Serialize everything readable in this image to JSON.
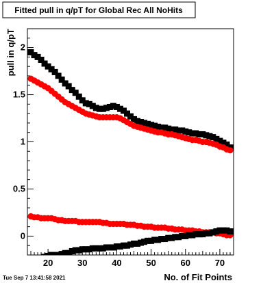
{
  "timestamp": "Tue Sep  7 13:41:58 2021",
  "chart_data": {
    "type": "scatter",
    "title": "Fitted pull in q/pT for Global Rec All NoHits",
    "xlabel": "No. of Fit Points",
    "ylabel": "pull in q/pT",
    "xlim": [
      14,
      74
    ],
    "ylim": [
      -0.2,
      2.2
    ],
    "x_ticks": [
      20,
      30,
      40,
      50,
      60,
      70
    ],
    "x_tick_labels": [
      "20",
      "30",
      "40",
      "50",
      "60",
      "70"
    ],
    "y_ticks": [
      0,
      0.5,
      1,
      1.5,
      2
    ],
    "y_tick_labels": [
      "0",
      "0.5",
      "1",
      "1.5",
      "2"
    ],
    "grid": false,
    "series": [
      {
        "marker": "square",
        "color": "#000000",
        "x": [
          15,
          16,
          17,
          18,
          19,
          20,
          21,
          22,
          23,
          24,
          25,
          26,
          27,
          28,
          29,
          30,
          31,
          32,
          33,
          34,
          35,
          36,
          37,
          38,
          39,
          40,
          41,
          42,
          43,
          44,
          45,
          46,
          47,
          48,
          49,
          50,
          51,
          52,
          53,
          54,
          55,
          56,
          57,
          58,
          59,
          60,
          61,
          62,
          63,
          64,
          65,
          66,
          67,
          68,
          69,
          70,
          71,
          72,
          73
        ],
        "y": [
          1.95,
          1.92,
          1.9,
          1.87,
          1.83,
          1.8,
          1.77,
          1.74,
          1.7,
          1.66,
          1.62,
          1.59,
          1.55,
          1.52,
          1.48,
          1.44,
          1.41,
          1.4,
          1.38,
          1.36,
          1.35,
          1.35,
          1.36,
          1.37,
          1.38,
          1.37,
          1.35,
          1.33,
          1.3,
          1.27,
          1.24,
          1.22,
          1.21,
          1.2,
          1.19,
          1.18,
          1.17,
          1.16,
          1.15,
          1.15,
          1.14,
          1.13,
          1.13,
          1.12,
          1.12,
          1.11,
          1.1,
          1.09,
          1.09,
          1.08,
          1.08,
          1.07,
          1.06,
          1.05,
          1.03,
          1.01,
          0.99,
          0.97,
          0.94
        ]
      },
      {
        "marker": "circle",
        "color": "#ff0000",
        "x": [
          15,
          16,
          17,
          18,
          19,
          20,
          21,
          22,
          23,
          24,
          25,
          26,
          27,
          28,
          29,
          30,
          31,
          32,
          33,
          34,
          35,
          36,
          37,
          38,
          39,
          40,
          41,
          42,
          43,
          44,
          45,
          46,
          47,
          48,
          49,
          50,
          51,
          52,
          53,
          54,
          55,
          56,
          57,
          58,
          59,
          60,
          61,
          62,
          63,
          64,
          65,
          66,
          67,
          68,
          69,
          70,
          71,
          72,
          73
        ],
        "y": [
          1.67,
          1.65,
          1.63,
          1.61,
          1.59,
          1.57,
          1.54,
          1.51,
          1.48,
          1.45,
          1.42,
          1.4,
          1.38,
          1.36,
          1.34,
          1.32,
          1.3,
          1.29,
          1.28,
          1.27,
          1.26,
          1.26,
          1.26,
          1.26,
          1.26,
          1.26,
          1.25,
          1.23,
          1.21,
          1.19,
          1.17,
          1.16,
          1.15,
          1.14,
          1.13,
          1.12,
          1.11,
          1.1,
          1.1,
          1.09,
          1.08,
          1.08,
          1.07,
          1.06,
          1.05,
          1.04,
          1.03,
          1.02,
          1.02,
          1.01,
          1.0,
          1.0,
          0.99,
          0.98,
          0.97,
          0.95,
          0.94,
          0.92,
          0.91
        ]
      },
      {
        "marker": "circle",
        "color": "#ff0000",
        "x": [
          15,
          16,
          17,
          18,
          19,
          20,
          21,
          22,
          23,
          24,
          25,
          26,
          27,
          28,
          29,
          30,
          31,
          32,
          33,
          34,
          35,
          36,
          37,
          38,
          39,
          40,
          41,
          42,
          43,
          44,
          45,
          46,
          47,
          48,
          49,
          50,
          51,
          52,
          53,
          54,
          55,
          56,
          57,
          58,
          59,
          60,
          61,
          62,
          63,
          64,
          65,
          66,
          67,
          68,
          69,
          70,
          71,
          72,
          73
        ],
        "y": [
          0.21,
          0.2,
          0.2,
          0.19,
          0.19,
          0.19,
          0.19,
          0.18,
          0.17,
          0.17,
          0.16,
          0.16,
          0.16,
          0.16,
          0.15,
          0.15,
          0.15,
          0.15,
          0.15,
          0.15,
          0.15,
          0.14,
          0.14,
          0.13,
          0.13,
          0.13,
          0.13,
          0.13,
          0.12,
          0.12,
          0.12,
          0.11,
          0.11,
          0.1,
          0.1,
          0.1,
          0.09,
          0.09,
          0.09,
          0.09,
          0.08,
          0.08,
          0.07,
          0.07,
          0.07,
          0.06,
          0.06,
          0.06,
          0.05,
          0.05,
          0.04,
          0.04,
          0.04,
          0.04,
          0.03,
          0.03,
          0.02,
          0.01,
          0.01
        ]
      },
      {
        "marker": "square",
        "color": "#000000",
        "x": [
          15,
          16,
          17,
          18,
          19,
          20,
          21,
          22,
          23,
          24,
          25,
          26,
          27,
          28,
          29,
          30,
          31,
          32,
          33,
          34,
          35,
          36,
          37,
          38,
          39,
          40,
          41,
          42,
          43,
          44,
          45,
          46,
          47,
          48,
          49,
          50,
          51,
          52,
          53,
          54,
          55,
          56,
          57,
          58,
          59,
          60,
          61,
          62,
          63,
          64,
          65,
          66,
          67,
          68,
          69,
          70,
          71,
          72,
          73
        ],
        "y": [
          -0.26,
          -0.25,
          -0.24,
          -0.23,
          -0.22,
          -0.21,
          -0.2,
          -0.2,
          -0.2,
          -0.19,
          -0.18,
          -0.18,
          -0.16,
          -0.15,
          -0.15,
          -0.14,
          -0.14,
          -0.14,
          -0.13,
          -0.13,
          -0.13,
          -0.13,
          -0.12,
          -0.12,
          -0.12,
          -0.11,
          -0.11,
          -0.1,
          -0.1,
          -0.09,
          -0.08,
          -0.08,
          -0.07,
          -0.06,
          -0.05,
          -0.05,
          -0.04,
          -0.04,
          -0.03,
          -0.03,
          -0.02,
          -0.02,
          -0.01,
          -0.01,
          0.0,
          0.0,
          0.01,
          0.01,
          0.02,
          0.02,
          0.02,
          0.03,
          0.03,
          0.04,
          0.05,
          0.06,
          0.06,
          0.06,
          0.05
        ]
      }
    ]
  }
}
